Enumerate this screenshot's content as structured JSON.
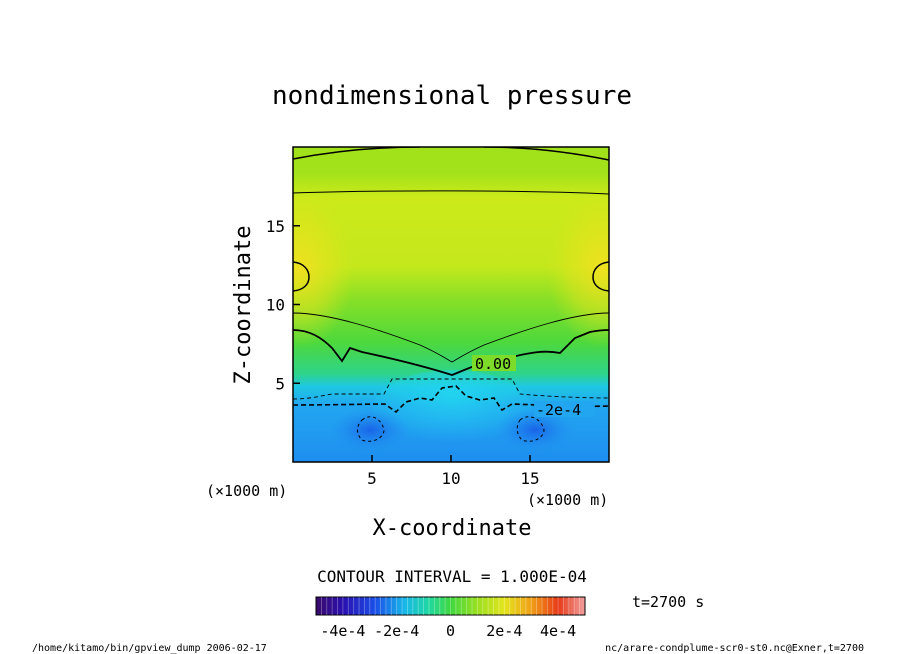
{
  "chart_data": {
    "type": "heatmap",
    "title": "nondimensional pressure",
    "xlabel": "X-coordinate",
    "ylabel": "Z-coordinate",
    "x_unit": "(×1000 m)",
    "y_unit": "(×1000 m)",
    "xlim": [
      0,
      20
    ],
    "ylim": [
      0,
      20
    ],
    "x_ticks": [
      5,
      10,
      15
    ],
    "y_ticks": [
      5,
      10,
      15
    ],
    "contour_interval_text": "CONTOUR INTERVAL = 1.000E-04",
    "contour_labels": [
      "0.00",
      "-2e-4"
    ],
    "colorbar": {
      "range": [
        -0.0005,
        0.0005
      ],
      "tick_labels": [
        "-4e-4",
        "-2e-4",
        "0",
        "2e-4",
        "4e-4"
      ],
      "tick_values": [
        -0.0004,
        -0.0002,
        0,
        0.0002,
        0.0004
      ]
    },
    "time_label": "t=2700 s",
    "footer_left": "/home/kitamo/bin/gpview_dump  2006-02-17",
    "footer_right": "nc/arare-condplume-scr0-st0.nc@Exner,t=2700"
  }
}
